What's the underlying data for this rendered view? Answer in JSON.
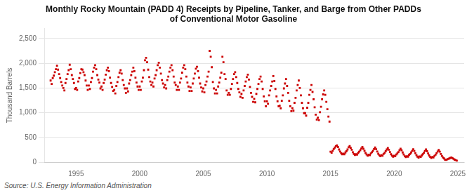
{
  "chart_data": {
    "type": "scatter",
    "title": "Monthly Rocky Mountain (PADD 4) Receipts by Pipeline, Tanker, and Barge from Other PADDs",
    "subtitle": "of Conventional Motor Gasoline",
    "ylabel": "Thousand Barrels",
    "source": "Source: U.S. Energy Information Administration",
    "color": "#cc0000",
    "marker": "square",
    "grid": "y",
    "xlim": [
      1992.5,
      2025.5
    ],
    "ylim": [
      0,
      2700
    ],
    "xticks": [
      1995,
      2000,
      2005,
      2010,
      2015,
      2020,
      2025
    ],
    "yticks": [
      0,
      500,
      {
        "value": 1000,
        "label": "1,000"
      },
      {
        "value": 1500,
        "label": "1,500"
      },
      {
        "value": 2000,
        "label": "2,000"
      },
      {
        "value": 2500,
        "label": "2,500"
      }
    ],
    "x": [
      1993.0,
      1993.083,
      1993.167,
      1993.25,
      1993.333,
      1993.417,
      1993.5,
      1993.583,
      1993.667,
      1993.75,
      1993.833,
      1993.917,
      1994.0,
      1994.083,
      1994.167,
      1994.25,
      1994.333,
      1994.417,
      1994.5,
      1994.583,
      1994.667,
      1994.75,
      1994.833,
      1994.917,
      1995.0,
      1995.083,
      1995.167,
      1995.25,
      1995.333,
      1995.417,
      1995.5,
      1995.583,
      1995.667,
      1995.75,
      1995.833,
      1995.917,
      1996.0,
      1996.083,
      1996.167,
      1996.25,
      1996.333,
      1996.417,
      1996.5,
      1996.583,
      1996.667,
      1996.75,
      1996.833,
      1996.917,
      1997.0,
      1997.083,
      1997.167,
      1997.25,
      1997.333,
      1997.417,
      1997.5,
      1997.583,
      1997.667,
      1997.75,
      1997.833,
      1997.917,
      1998.0,
      1998.083,
      1998.167,
      1998.25,
      1998.333,
      1998.417,
      1998.5,
      1998.583,
      1998.667,
      1998.75,
      1998.833,
      1998.917,
      1999.0,
      1999.083,
      1999.167,
      1999.25,
      1999.333,
      1999.417,
      1999.5,
      1999.583,
      1999.667,
      1999.75,
      1999.833,
      1999.917,
      2000.0,
      2000.083,
      2000.167,
      2000.25,
      2000.333,
      2000.417,
      2000.5,
      2000.583,
      2000.667,
      2000.75,
      2000.833,
      2000.917,
      2001.0,
      2001.083,
      2001.167,
      2001.25,
      2001.333,
      2001.417,
      2001.5,
      2001.583,
      2001.667,
      2001.75,
      2001.833,
      2001.917,
      2002.0,
      2002.083,
      2002.167,
      2002.25,
      2002.333,
      2002.417,
      2002.5,
      2002.583,
      2002.667,
      2002.75,
      2002.833,
      2002.917,
      2003.0,
      2003.083,
      2003.167,
      2003.25,
      2003.333,
      2003.417,
      2003.5,
      2003.583,
      2003.667,
      2003.75,
      2003.833,
      2003.917,
      2004.0,
      2004.083,
      2004.167,
      2004.25,
      2004.333,
      2004.417,
      2004.5,
      2004.583,
      2004.667,
      2004.75,
      2004.833,
      2004.917,
      2005.0,
      2005.083,
      2005.167,
      2005.25,
      2005.333,
      2005.417,
      2005.5,
      2005.583,
      2005.667,
      2005.75,
      2005.833,
      2005.917,
      2006.0,
      2006.083,
      2006.167,
      2006.25,
      2006.333,
      2006.417,
      2006.5,
      2006.583,
      2006.667,
      2006.75,
      2006.833,
      2006.917,
      2007.0,
      2007.083,
      2007.167,
      2007.25,
      2007.333,
      2007.417,
      2007.5,
      2007.583,
      2007.667,
      2007.75,
      2007.833,
      2007.917,
      2008.0,
      2008.083,
      2008.167,
      2008.25,
      2008.333,
      2008.417,
      2008.5,
      2008.583,
      2008.667,
      2008.75,
      2008.833,
      2008.917,
      2009.0,
      2009.083,
      2009.167,
      2009.25,
      2009.333,
      2009.417,
      2009.5,
      2009.583,
      2009.667,
      2009.75,
      2009.833,
      2009.917,
      2010.0,
      2010.083,
      2010.167,
      2010.25,
      2010.333,
      2010.417,
      2010.5,
      2010.583,
      2010.667,
      2010.75,
      2010.833,
      2010.917,
      2011.0,
      2011.083,
      2011.167,
      2011.25,
      2011.333,
      2011.417,
      2011.5,
      2011.583,
      2011.667,
      2011.75,
      2011.833,
      2011.917,
      2012.0,
      2012.083,
      2012.167,
      2012.25,
      2012.333,
      2012.417,
      2012.5,
      2012.583,
      2012.667,
      2012.75,
      2012.833,
      2012.917,
      2013.0,
      2013.083,
      2013.167,
      2013.25,
      2013.333,
      2013.417,
      2013.5,
      2013.583,
      2013.667,
      2013.75,
      2013.833,
      2013.917,
      2014.0,
      2014.083,
      2014.167,
      2014.25,
      2014.333,
      2014.417,
      2014.5,
      2014.583,
      2014.667,
      2014.75,
      2014.833,
      2014.917,
      2015.0,
      2015.083,
      2015.167,
      2015.25,
      2015.333,
      2015.417,
      2015.5,
      2015.583,
      2015.667,
      2015.75,
      2015.833,
      2015.917,
      2016.0,
      2016.083,
      2016.167,
      2016.25,
      2016.333,
      2016.417,
      2016.5,
      2016.583,
      2016.667,
      2016.75,
      2016.833,
      2016.917,
      2017.0,
      2017.083,
      2017.167,
      2017.25,
      2017.333,
      2017.417,
      2017.5,
      2017.583,
      2017.667,
      2017.75,
      2017.833,
      2017.917,
      2018.0,
      2018.083,
      2018.167,
      2018.25,
      2018.333,
      2018.417,
      2018.5,
      2018.583,
      2018.667,
      2018.75,
      2018.833,
      2018.917,
      2019.0,
      2019.083,
      2019.167,
      2019.25,
      2019.333,
      2019.417,
      2019.5,
      2019.583,
      2019.667,
      2019.75,
      2019.833,
      2019.917,
      2020.0,
      2020.083,
      2020.167,
      2020.25,
      2020.333,
      2020.417,
      2020.5,
      2020.583,
      2020.667,
      2020.75,
      2020.833,
      2020.917,
      2021.0,
      2021.083,
      2021.167,
      2021.25,
      2021.333,
      2021.417,
      2021.5,
      2021.583,
      2021.667,
      2021.75,
      2021.833,
      2021.917,
      2022.0,
      2022.083,
      2022.167,
      2022.25,
      2022.333,
      2022.417,
      2022.5,
      2022.583,
      2022.667,
      2022.75,
      2022.833,
      2022.917,
      2023.0,
      2023.083,
      2023.167,
      2023.25,
      2023.333,
      2023.417,
      2023.5,
      2023.583,
      2023.667,
      2023.75,
      2023.833,
      2023.917,
      2024.0,
      2024.083,
      2024.167,
      2024.25,
      2024.333,
      2024.417,
      2024.5,
      2024.583,
      2024.667,
      2024.75,
      2024.833,
      2024.917
    ],
    "values": [
      1650,
      1580,
      1700,
      1750,
      1820,
      1880,
      1950,
      1870,
      1780,
      1700,
      1620,
      1550,
      1500,
      1450,
      1600,
      1680,
      1780,
      1860,
      1970,
      1880,
      1760,
      1680,
      1600,
      1480,
      1500,
      1460,
      1630,
      1700,
      1800,
      1880,
      1870,
      1820,
      1760,
      1650,
      1550,
      1460,
      1550,
      1480,
      1620,
      1700,
      1830,
      1910,
      1960,
      1880,
      1760,
      1670,
      1610,
      1490,
      1530,
      1460,
      1600,
      1670,
      1770,
      1860,
      1910,
      1840,
      1710,
      1600,
      1520,
      1440,
      1460,
      1390,
      1540,
      1620,
      1720,
      1810,
      1860,
      1790,
      1660,
      1560,
      1490,
      1400,
      1490,
      1430,
      1590,
      1660,
      1760,
      1830,
      1910,
      1840,
      1710,
      1610,
      1530,
      1460,
      1530,
      1460,
      1630,
      1710,
      1860,
      2060,
      2110,
      2020,
      1870,
      1720,
      1630,
      1560,
      1610,
      1530,
      1690,
      1760,
      1860,
      1960,
      2010,
      1910,
      1790,
      1660,
      1590,
      1510,
      1560,
      1490,
      1660,
      1730,
      1830,
      1910,
      1960,
      1860,
      1730,
      1610,
      1560,
      1460,
      1530,
      1460,
      1610,
      1690,
      1810,
      1910,
      1960,
      1880,
      1730,
      1610,
      1530,
      1440,
      1510,
      1440,
      1590,
      1690,
      1790,
      1890,
      1930,
      1840,
      1710,
      1590,
      1510,
      1430,
      1490,
      1410,
      1560,
      1630,
      1730,
      1830,
      2250,
      2130,
      1920,
      1620,
      1490,
      1390,
      1460,
      1390,
      1530,
      1610,
      1710,
      1810,
      2130,
      2020,
      1780,
      1680,
      1450,
      1360,
      1400,
      1360,
      1480,
      1580,
      1680,
      1780,
      1820,
      1720,
      1600,
      1480,
      1410,
      1320,
      1380,
      1300,
      1450,
      1540,
      1630,
      1720,
      1770,
      1670,
      1520,
      1400,
      1320,
      1220,
      1280,
      1210,
      1380,
      1480,
      1580,
      1680,
      1730,
      1630,
      1480,
      1330,
      1230,
      1130,
      1230,
      1180,
      1350,
      1450,
      1540,
      1630,
      1740,
      1640,
      1480,
      1330,
      1230,
      1130,
      1140,
      1090,
      1240,
      1350,
      1490,
      1590,
      1680,
      1540,
      1400,
      1240,
      1130,
      1030,
      1090,
      1040,
      1200,
      1300,
      1450,
      1560,
      1650,
      1500,
      1350,
      1200,
      1090,
      990,
      990,
      940,
      1100,
      1200,
      1360,
      1460,
      1560,
      1420,
      1270,
      1110,
      960,
      860,
      900,
      850,
      1010,
      1120,
      1270,
      1370,
      1450,
      1360,
      1220,
      1070,
      920,
      820,
      210,
      190,
      230,
      265,
      295,
      320,
      340,
      305,
      255,
      215,
      180,
      160,
      170,
      160,
      195,
      220,
      255,
      300,
      325,
      290,
      250,
      200,
      165,
      145,
      160,
      150,
      185,
      210,
      240,
      275,
      305,
      270,
      230,
      185,
      155,
      130,
      150,
      140,
      175,
      200,
      230,
      265,
      295,
      260,
      215,
      170,
      140,
      120,
      140,
      130,
      165,
      190,
      220,
      255,
      285,
      250,
      205,
      160,
      130,
      110,
      130,
      120,
      155,
      175,
      205,
      240,
      270,
      240,
      195,
      155,
      120,
      100,
      120,
      110,
      145,
      165,
      195,
      230,
      260,
      225,
      180,
      140,
      110,
      90,
      115,
      105,
      135,
      160,
      190,
      225,
      255,
      220,
      175,
      135,
      105,
      85,
      105,
      95,
      125,
      150,
      180,
      215,
      245,
      210,
      165,
      125,
      95,
      75,
      50,
      45,
      55,
      65,
      75,
      85,
      95,
      80,
      65,
      50,
      40,
      30
    ]
  }
}
